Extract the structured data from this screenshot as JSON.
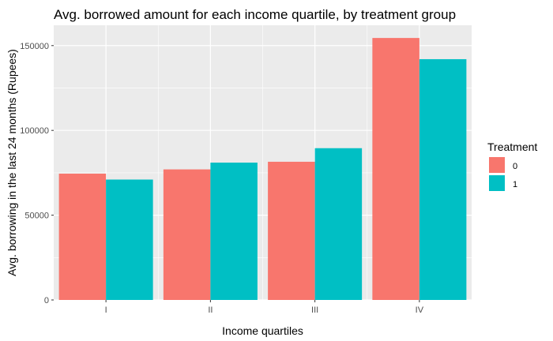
{
  "chart_data": {
    "type": "bar",
    "title": "Avg. borrowed amount for each income quartile, by treatment group",
    "xlabel": "Income quartiles",
    "ylabel": "Avg. borrowing in the last 24 months (Rupees)",
    "categories": [
      "I",
      "II",
      "III",
      "IV"
    ],
    "series": [
      {
        "name": "0",
        "color": "#F8766D",
        "values": [
          74500,
          77000,
          81500,
          154500
        ]
      },
      {
        "name": "1",
        "color": "#00BFC4",
        "values": [
          71000,
          81000,
          89500,
          142000
        ]
      }
    ],
    "ylim": [
      0,
      162000
    ],
    "yticks": [
      0,
      50000,
      100000,
      150000
    ],
    "ytick_labels": [
      "0",
      "50000",
      "100000",
      "150000"
    ],
    "grid": true,
    "legend": {
      "title": "Treatment",
      "position": "right"
    },
    "panel_color": "#EBEBEB"
  }
}
